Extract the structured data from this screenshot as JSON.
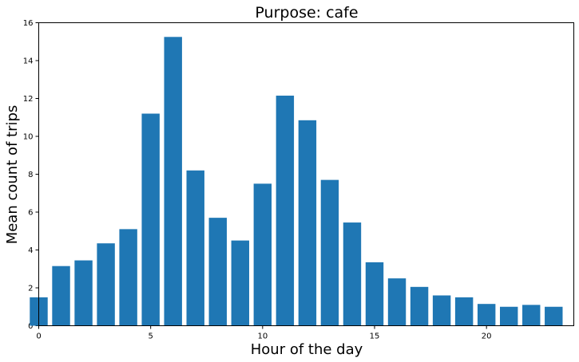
{
  "chart_data": {
    "type": "bar",
    "title": "Purpose: cafe",
    "xlabel": "Hour of the day",
    "ylabel": "Mean count of trips",
    "x": [
      0,
      1,
      2,
      3,
      4,
      5,
      6,
      7,
      8,
      9,
      10,
      11,
      12,
      13,
      14,
      15,
      16,
      17,
      18,
      19,
      20,
      21,
      22,
      23
    ],
    "values": [
      1.5,
      3.15,
      3.45,
      4.35,
      5.1,
      11.2,
      15.25,
      8.2,
      5.7,
      4.5,
      7.5,
      12.15,
      10.85,
      7.7,
      5.45,
      3.35,
      2.5,
      2.05,
      1.6,
      1.5,
      1.15,
      1.0,
      1.1,
      1.0
    ],
    "xlim": [
      0,
      23.9
    ],
    "ylim": [
      0,
      16
    ],
    "xticks": [
      0,
      5,
      10,
      15,
      20
    ],
    "yticks": [
      0,
      2,
      4,
      6,
      8,
      10,
      12,
      14,
      16
    ],
    "bar_color": "#1f77b4",
    "grid": false
  }
}
